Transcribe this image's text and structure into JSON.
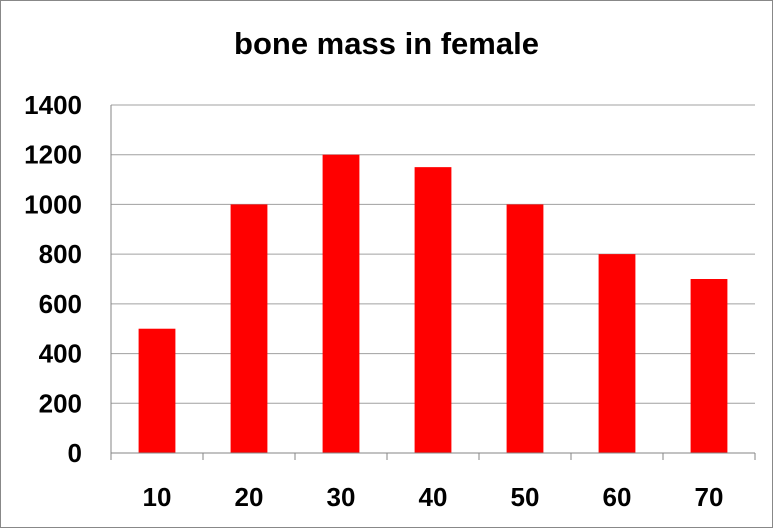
{
  "chart_data": {
    "type": "bar",
    "title": "bone mass in female",
    "xlabel": "",
    "ylabel": "",
    "categories": [
      "10",
      "20",
      "30",
      "40",
      "50",
      "60",
      "70"
    ],
    "values": [
      500,
      1000,
      1200,
      1150,
      1000,
      800,
      700
    ],
    "ylim": [
      0,
      1400
    ],
    "yticks": [
      "0",
      "200",
      "400",
      "600",
      "800",
      "1000",
      "1200",
      "1400"
    ],
    "grid": true,
    "legend": "none",
    "bar_color": "#ff0000",
    "grid_color": "#a0a0a0",
    "axis_color": "#868686"
  }
}
